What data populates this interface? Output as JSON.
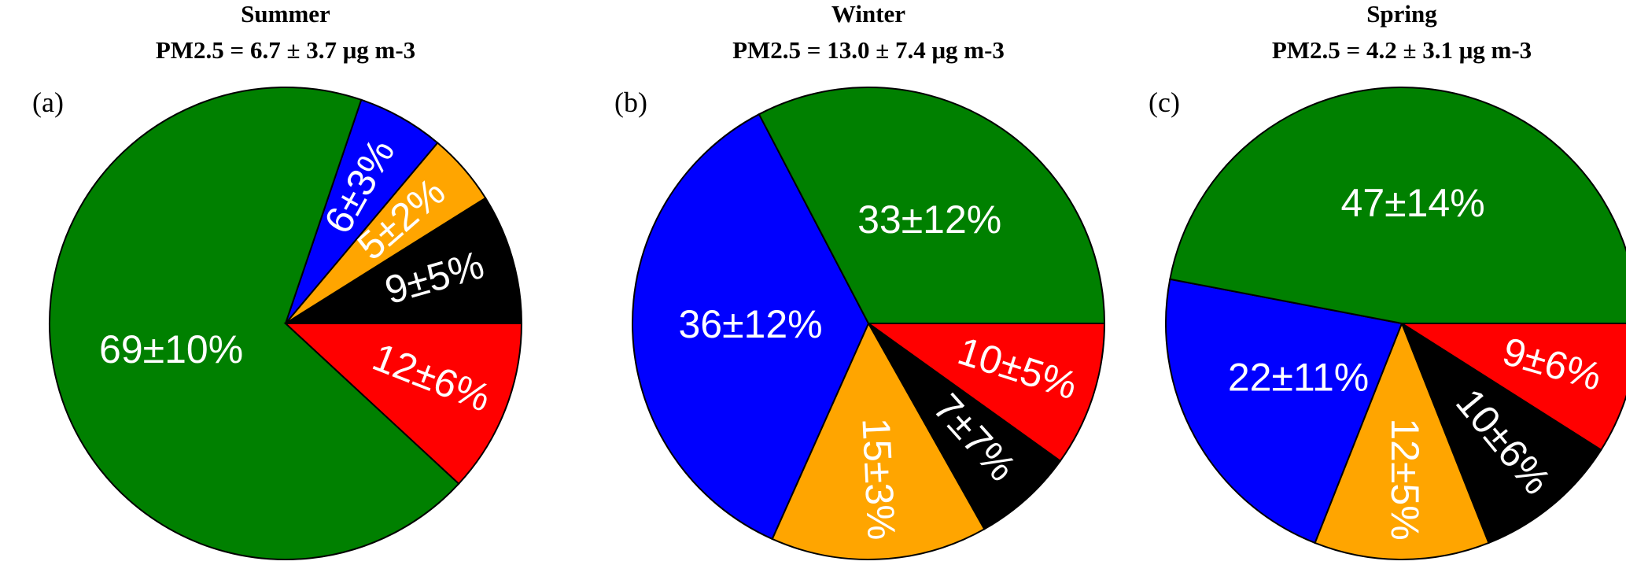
{
  "chart_data": [
    {
      "type": "pie",
      "title": "Summer",
      "subtitle": "PM2.5 = 6.7 ± 3.7 μg m-3",
      "panel_label": "(a)",
      "direction": "counterclockwise",
      "values": [
        9,
        5,
        6,
        69,
        12
      ],
      "value_labels": [
        "9±5%",
        "5±2%",
        "6±3%",
        "69±10%",
        "12±6%"
      ],
      "colors": [
        "#000000",
        "#ffa500",
        "#0000ff",
        "#008000",
        "#ff0000"
      ]
    },
    {
      "type": "pie",
      "title": "Winter",
      "subtitle": "PM2.5 = 13.0 ± 7.4 μg m-3",
      "panel_label": "(b)",
      "direction": "clockwise",
      "values": [
        10,
        7,
        15,
        36,
        33
      ],
      "value_labels": [
        "10±5%",
        "7±7%",
        "15±3%",
        "36±12%",
        "33±12%"
      ],
      "colors": [
        "#ff0000",
        "#000000",
        "#ffa500",
        "#0000ff",
        "#008000"
      ]
    },
    {
      "type": "pie",
      "title": "Spring",
      "subtitle": "PM2.5 = 4.2 ± 3.1 μg m-3",
      "panel_label": "(c)",
      "direction": "clockwise",
      "values": [
        9,
        10,
        12,
        22,
        47
      ],
      "value_labels": [
        "9±6%",
        "10±6%",
        "12±5%",
        "22±11%",
        "47±14%"
      ],
      "colors": [
        "#ff0000",
        "#000000",
        "#ffa500",
        "#0000ff",
        "#008000"
      ]
    }
  ]
}
